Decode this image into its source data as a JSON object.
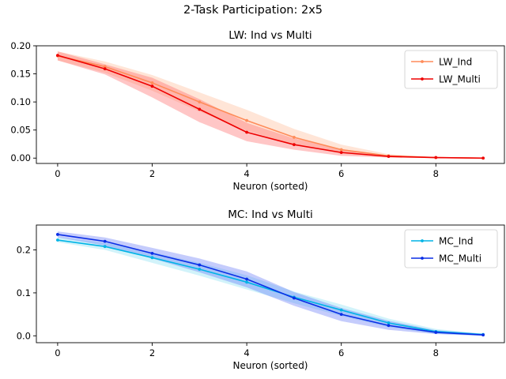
{
  "figure": {
    "suptitle": "2-Task Participation: 2x5"
  },
  "chart_data": [
    {
      "type": "line",
      "title": "LW: Ind vs Multi",
      "xlabel": "Neuron (sorted)",
      "ylabel": "",
      "xlim": [
        -0.45,
        9.45
      ],
      "ylim": [
        -0.0095,
        0.2
      ],
      "xticks": [
        0,
        2,
        4,
        6,
        8
      ],
      "xtick_labels": [
        "0",
        "2",
        "4",
        "6",
        "8"
      ],
      "yticks": [
        0.0,
        0.05,
        0.1,
        0.15,
        0.2
      ],
      "ytick_labels": [
        "0.00",
        "0.05",
        "0.10",
        "0.15",
        "0.20"
      ],
      "grid": false,
      "legend": "upper right",
      "x": [
        0,
        1,
        2,
        3,
        4,
        5,
        6,
        7,
        8,
        9
      ],
      "series": [
        {
          "name": "LW_Ind",
          "color": "#ff8c5a",
          "values": [
            0.182,
            0.163,
            0.134,
            0.1,
            0.067,
            0.037,
            0.015,
            0.004,
            0.001,
            0.0
          ],
          "band_lower": [
            0.174,
            0.152,
            0.12,
            0.083,
            0.049,
            0.024,
            0.008,
            0.001,
            0.0,
            0.0
          ],
          "band_upper": [
            0.19,
            0.172,
            0.148,
            0.117,
            0.086,
            0.052,
            0.024,
            0.007,
            0.002,
            0.001
          ],
          "band_color": "#ffb48c"
        },
        {
          "name": "LW_Multi",
          "color": "#ee0000",
          "values": [
            0.183,
            0.159,
            0.128,
            0.087,
            0.046,
            0.024,
            0.01,
            0.003,
            0.001,
            0.0
          ],
          "band_lower": [
            0.174,
            0.149,
            0.108,
            0.064,
            0.03,
            0.015,
            0.004,
            0.001,
            0.0,
            0.0
          ],
          "band_upper": [
            0.19,
            0.167,
            0.143,
            0.105,
            0.063,
            0.035,
            0.016,
            0.005,
            0.002,
            0.001
          ],
          "band_color": "#ff5c5c"
        }
      ]
    },
    {
      "type": "line",
      "title": "MC: Ind vs Multi",
      "xlabel": "Neuron (sorted)",
      "ylabel": "",
      "xlim": [
        -0.45,
        9.45
      ],
      "ylim": [
        -0.016,
        0.258
      ],
      "xticks": [
        0,
        2,
        4,
        6,
        8
      ],
      "xtick_labels": [
        "0",
        "2",
        "4",
        "6",
        "8"
      ],
      "yticks": [
        0.0,
        0.1,
        0.2
      ],
      "ytick_labels": [
        "0.0",
        "0.1",
        "0.2"
      ],
      "grid": false,
      "legend": "upper right",
      "x": [
        0,
        1,
        2,
        3,
        4,
        5,
        6,
        7,
        8,
        9
      ],
      "series": [
        {
          "name": "MC_Ind",
          "color": "#00b4e6",
          "values": [
            0.223,
            0.208,
            0.182,
            0.155,
            0.125,
            0.09,
            0.06,
            0.03,
            0.01,
            0.003
          ],
          "band_lower": [
            0.218,
            0.2,
            0.17,
            0.14,
            0.108,
            0.076,
            0.046,
            0.02,
            0.005,
            0.0
          ],
          "band_upper": [
            0.23,
            0.217,
            0.195,
            0.17,
            0.141,
            0.103,
            0.073,
            0.04,
            0.016,
            0.005
          ],
          "band_color": "#7fdcf2"
        },
        {
          "name": "MC_Multi",
          "color": "#0a2ee6",
          "values": [
            0.236,
            0.22,
            0.192,
            0.165,
            0.132,
            0.088,
            0.05,
            0.024,
            0.008,
            0.002
          ],
          "band_lower": [
            0.229,
            0.21,
            0.18,
            0.148,
            0.113,
            0.07,
            0.034,
            0.014,
            0.004,
            0.0
          ],
          "band_upper": [
            0.243,
            0.229,
            0.205,
            0.18,
            0.15,
            0.102,
            0.065,
            0.035,
            0.013,
            0.005
          ],
          "band_color": "#5a6ef5"
        }
      ]
    }
  ]
}
